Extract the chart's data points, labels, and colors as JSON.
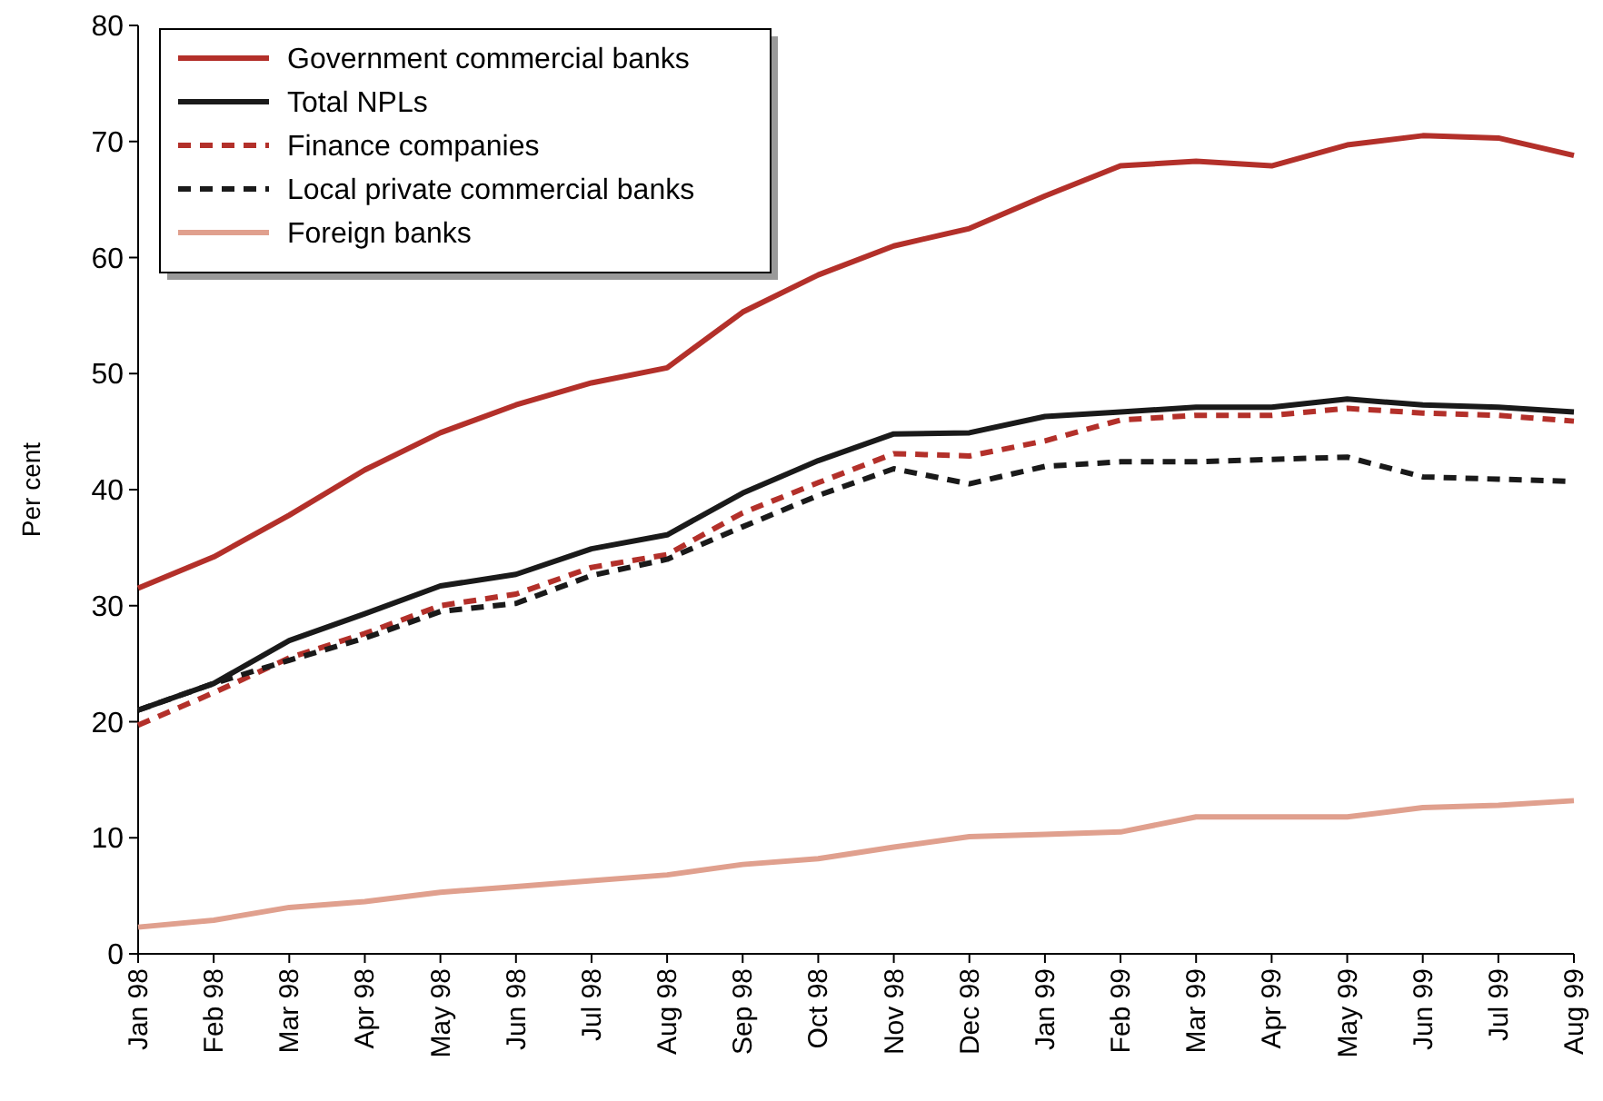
{
  "chart_data": {
    "type": "line",
    "ylabel": "Per cent",
    "categories": [
      "Jan 98",
      "Feb 98",
      "Mar 98",
      "Apr 98",
      "May 98",
      "Jun 98",
      "Jul 98",
      "Aug 98",
      "Sep 98",
      "Oct 98",
      "Nov 98",
      "Dec 98",
      "Jan 99",
      "Feb 99",
      "Mar 99",
      "Apr 99",
      "May 99",
      "Jun 99",
      "Jul 99",
      "Aug 99"
    ],
    "ylim": [
      0,
      80
    ],
    "yticks": [
      0,
      10,
      20,
      30,
      40,
      50,
      60,
      70,
      80
    ],
    "grid": false,
    "legend": "top left",
    "marker": "none",
    "series": [
      {
        "name": "Government commercial banks",
        "color": "#b3302a",
        "line_style": "solid",
        "values": [
          31.5,
          34.2,
          37.8,
          41.7,
          44.9,
          47.3,
          49.2,
          50.5,
          55.3,
          58.5,
          61,
          62.5,
          65.3,
          67.9,
          68.3,
          67.9,
          69.7,
          70.5,
          70.3,
          68.8
        ]
      },
      {
        "name": "Total NPLs",
        "color": "#1a1a1a",
        "line_style": "solid",
        "values": [
          21,
          23.3,
          27,
          29.3,
          31.7,
          32.7,
          34.9,
          36.1,
          39.7,
          42.5,
          44.8,
          44.9,
          46.3,
          46.7,
          47.1,
          47.1,
          47.8,
          47.3,
          47.1,
          46.7
        ]
      },
      {
        "name": "Finance companies",
        "color": "#b3302a",
        "line_style": "dashed",
        "values": [
          19.7,
          22.5,
          25.5,
          27.6,
          30,
          31,
          33.3,
          34.4,
          38,
          40.6,
          43.1,
          42.9,
          44.2,
          46,
          46.4,
          46.4,
          47,
          46.6,
          46.4,
          45.9
        ]
      },
      {
        "name": "Local private commercial banks",
        "color": "#1a1a1a",
        "line_style": "dashed",
        "values": [
          21,
          23.3,
          25.3,
          27.2,
          29.5,
          30.2,
          32.6,
          34,
          36.8,
          39.5,
          41.8,
          40.5,
          42,
          42.4,
          42.4,
          42.6,
          42.8,
          41.1,
          40.9,
          40.7
        ]
      },
      {
        "name": "Foreign banks",
        "color": "#e0a08e",
        "line_style": "solid",
        "values": [
          2.3,
          2.9,
          4,
          4.5,
          5.3,
          5.8,
          6.3,
          6.8,
          7.7,
          8.2,
          9.2,
          10.1,
          10.3,
          10.5,
          11.8,
          11.8,
          11.8,
          12.6,
          12.8,
          13.2
        ]
      }
    ]
  }
}
